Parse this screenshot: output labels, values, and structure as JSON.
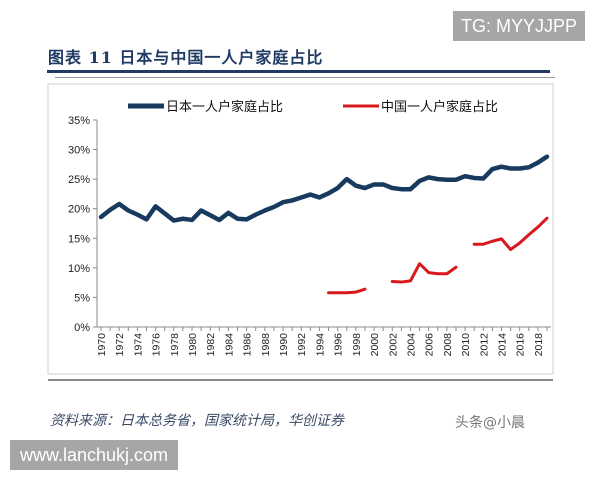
{
  "watermark_top": "TG: MYYJJPP",
  "watermark_bottom": "www.lanchukj.com",
  "watermark_corner": "头条@小晨",
  "figure_title": "图表 11   日本与中国一人户家庭占比",
  "source": "资料来源：日本总务省，国家统计局，华创证券",
  "chart_data": {
    "type": "line",
    "title": "",
    "xlabel": "",
    "ylabel": "",
    "ylim": [
      0,
      35
    ],
    "yticks": [
      "0%",
      "5%",
      "10%",
      "15%",
      "20%",
      "25%",
      "30%",
      "35%"
    ],
    "xticks": [
      "1970",
      "1972",
      "1974",
      "1976",
      "1978",
      "1980",
      "1982",
      "1984",
      "1986",
      "1988",
      "1990",
      "1992",
      "1994",
      "1996",
      "1998",
      "2000",
      "2002",
      "2004",
      "2006",
      "2008",
      "2010",
      "2012",
      "2014",
      "2016",
      "2018"
    ],
    "grid": false,
    "legend_position": "top",
    "x": [
      1970,
      1971,
      1972,
      1973,
      1974,
      1975,
      1976,
      1977,
      1978,
      1979,
      1980,
      1981,
      1982,
      1983,
      1984,
      1985,
      1986,
      1987,
      1988,
      1989,
      1990,
      1991,
      1992,
      1993,
      1994,
      1995,
      1996,
      1997,
      1998,
      1999,
      2000,
      2001,
      2002,
      2003,
      2004,
      2005,
      2006,
      2007,
      2008,
      2009,
      2010,
      2011,
      2012,
      2013,
      2014,
      2015,
      2016,
      2017,
      2018,
      2019
    ],
    "series": [
      {
        "name": "日本一人户家庭占比",
        "color": "#173a5e",
        "values": [
          18.6,
          19.8,
          20.8,
          19.7,
          19.0,
          18.2,
          20.4,
          19.2,
          18.0,
          18.3,
          18.1,
          19.7,
          18.9,
          18.1,
          19.3,
          18.3,
          18.2,
          19.0,
          19.7,
          20.3,
          21.1,
          21.4,
          21.9,
          22.4,
          21.9,
          22.6,
          23.5,
          25.0,
          23.9,
          23.5,
          24.1,
          24.1,
          23.5,
          23.3,
          23.3,
          24.7,
          25.3,
          25.0,
          24.9,
          24.9,
          25.5,
          25.2,
          25.1,
          26.7,
          27.1,
          26.8,
          26.8,
          27.0,
          27.8,
          28.8
        ]
      },
      {
        "name": "中国一人户家庭占比",
        "color": "#d7191c",
        "values": [
          null,
          null,
          null,
          null,
          null,
          null,
          null,
          null,
          null,
          null,
          null,
          null,
          null,
          null,
          null,
          null,
          null,
          null,
          null,
          null,
          null,
          null,
          null,
          null,
          null,
          5.8,
          5.8,
          5.8,
          5.9,
          6.4,
          null,
          null,
          7.7,
          7.6,
          7.8,
          10.7,
          9.2,
          9.0,
          9.0,
          10.1,
          null,
          14.0,
          14.0,
          14.5,
          14.9,
          13.1,
          14.2,
          15.6,
          16.9,
          18.4
        ]
      }
    ]
  }
}
